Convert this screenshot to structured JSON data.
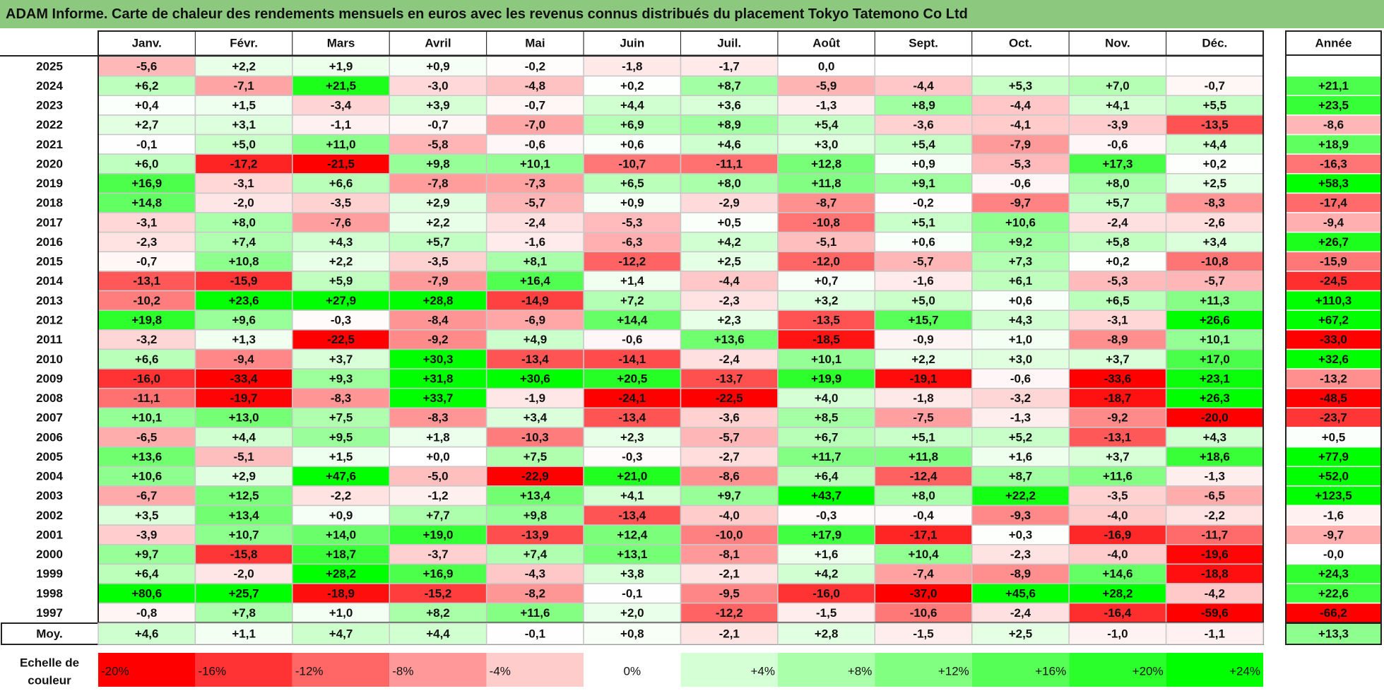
{
  "title": "ADAM Informe. Carte de chaleur des rendements mensuels en euros avec les revenus connus distribués du placement Tokyo Tatemono Co Ltd",
  "chart_data": {
    "type": "heatmap",
    "title": "ADAM Informe. Carte de chaleur des rendements mensuels en euros avec les revenus connus distribués du placement Tokyo Tatemono Co Ltd",
    "columns": [
      "Janv.",
      "Févr.",
      "Mars",
      "Avril",
      "Mai",
      "Juin",
      "Juil.",
      "Août",
      "Sept.",
      "Oct.",
      "Nov.",
      "Déc."
    ],
    "year_column_label": "Année",
    "rows": [
      {
        "year": "2025",
        "values": [
          "-5,6",
          "+2,2",
          "+1,9",
          "+0,9",
          "-0,2",
          "-1,8",
          "-1,7",
          "0,0",
          "",
          "",
          "",
          ""
        ],
        "annual": ""
      },
      {
        "year": "2024",
        "values": [
          "+6,2",
          "-7,1",
          "+21,5",
          "-3,0",
          "-4,8",
          "+0,2",
          "+8,7",
          "-5,9",
          "-4,4",
          "+5,3",
          "+7,0",
          "-0,7"
        ],
        "annual": "+21,1"
      },
      {
        "year": "2023",
        "values": [
          "+0,4",
          "+1,5",
          "-3,4",
          "+3,9",
          "-0,7",
          "+4,4",
          "+3,6",
          "-1,3",
          "+8,9",
          "-4,4",
          "+4,1",
          "+5,5"
        ],
        "annual": "+23,5"
      },
      {
        "year": "2022",
        "values": [
          "+2,7",
          "+3,1",
          "-1,1",
          "-0,7",
          "-7,0",
          "+6,9",
          "+8,9",
          "+5,4",
          "-3,6",
          "-4,1",
          "-3,9",
          "-13,5"
        ],
        "annual": "-8,6"
      },
      {
        "year": "2021",
        "values": [
          "-0,1",
          "+5,0",
          "+11,0",
          "-5,8",
          "-0,6",
          "+0,6",
          "+4,6",
          "+3,0",
          "+5,4",
          "-7,9",
          "-0,6",
          "+4,4"
        ],
        "annual": "+18,9"
      },
      {
        "year": "2020",
        "values": [
          "+6,0",
          "-17,2",
          "-21,5",
          "+9,8",
          "+10,1",
          "-10,7",
          "-11,1",
          "+12,8",
          "+0,9",
          "-5,3",
          "+17,3",
          "+0,2"
        ],
        "annual": "-16,3"
      },
      {
        "year": "2019",
        "values": [
          "+16,9",
          "-3,1",
          "+6,6",
          "-7,8",
          "-7,3",
          "+6,5",
          "+8,0",
          "+11,8",
          "+9,1",
          "-0,6",
          "+8,0",
          "+2,5"
        ],
        "annual": "+58,3"
      },
      {
        "year": "2018",
        "values": [
          "+14,8",
          "-2,0",
          "-3,5",
          "+2,9",
          "-5,7",
          "+0,9",
          "-2,9",
          "-8,7",
          "-0,2",
          "-9,7",
          "+5,7",
          "-8,3"
        ],
        "annual": "-17,4"
      },
      {
        "year": "2017",
        "values": [
          "-3,1",
          "+8,0",
          "-7,6",
          "+2,2",
          "-2,4",
          "-5,3",
          "+0,5",
          "-10,8",
          "+5,1",
          "+10,6",
          "-2,4",
          "-2,6"
        ],
        "annual": "-9,4"
      },
      {
        "year": "2016",
        "values": [
          "-2,3",
          "+7,4",
          "+4,3",
          "+5,7",
          "-1,6",
          "-6,3",
          "+4,2",
          "-5,1",
          "+0,6",
          "+9,2",
          "+5,8",
          "+3,4"
        ],
        "annual": "+26,7"
      },
      {
        "year": "2015",
        "values": [
          "-0,7",
          "+10,8",
          "+2,2",
          "-3,5",
          "+8,1",
          "-12,2",
          "+2,5",
          "-12,0",
          "-5,7",
          "+7,3",
          "+0,2",
          "-10,8"
        ],
        "annual": "-15,9"
      },
      {
        "year": "2014",
        "values": [
          "-13,1",
          "-15,9",
          "+5,9",
          "-7,9",
          "+16,4",
          "+1,4",
          "-4,4",
          "+0,7",
          "-1,6",
          "+6,1",
          "-5,3",
          "-5,7"
        ],
        "annual": "-24,5"
      },
      {
        "year": "2013",
        "values": [
          "-10,2",
          "+23,6",
          "+27,9",
          "+28,8",
          "-14,9",
          "+7,2",
          "-2,3",
          "+3,2",
          "+5,0",
          "+0,6",
          "+6,5",
          "+11,3"
        ],
        "annual": "+110,3"
      },
      {
        "year": "2012",
        "values": [
          "+19,8",
          "+9,6",
          "-0,3",
          "-8,4",
          "-6,9",
          "+14,4",
          "+2,3",
          "-13,5",
          "+15,7",
          "+4,3",
          "-3,1",
          "+26,6"
        ],
        "annual": "+67,2"
      },
      {
        "year": "2011",
        "values": [
          "-3,2",
          "+1,3",
          "-22,5",
          "-9,2",
          "+4,9",
          "-0,6",
          "+13,6",
          "-18,5",
          "-0,9",
          "+1,0",
          "-8,9",
          "+10,1"
        ],
        "annual": "-33,0"
      },
      {
        "year": "2010",
        "values": [
          "+6,6",
          "-9,4",
          "+3,7",
          "+30,3",
          "-13,4",
          "-14,1",
          "-2,4",
          "+10,1",
          "+2,2",
          "+3,0",
          "+3,7",
          "+17,0"
        ],
        "annual": "+32,6"
      },
      {
        "year": "2009",
        "values": [
          "-16,0",
          "-33,4",
          "+9,3",
          "+31,8",
          "+30,6",
          "+20,5",
          "-13,7",
          "+19,9",
          "-19,1",
          "-0,6",
          "-33,6",
          "+23,1"
        ],
        "annual": "-13,2"
      },
      {
        "year": "2008",
        "values": [
          "-11,1",
          "-19,7",
          "-8,3",
          "+33,7",
          "-1,9",
          "-24,1",
          "-22,5",
          "+4,0",
          "-1,8",
          "-3,2",
          "-18,7",
          "+26,3"
        ],
        "annual": "-48,5"
      },
      {
        "year": "2007",
        "values": [
          "+10,1",
          "+13,0",
          "+7,5",
          "-8,3",
          "+3,4",
          "-13,4",
          "-3,6",
          "+8,5",
          "-7,5",
          "-1,3",
          "-9,2",
          "-20,0"
        ],
        "annual": "-23,7"
      },
      {
        "year": "2006",
        "values": [
          "-6,5",
          "+4,4",
          "+9,5",
          "+1,8",
          "-10,3",
          "+2,3",
          "-5,7",
          "+6,7",
          "+5,1",
          "+5,2",
          "-13,1",
          "+4,3"
        ],
        "annual": "+0,5"
      },
      {
        "year": "2005",
        "values": [
          "+13,6",
          "-5,1",
          "+1,5",
          "+0,0",
          "+7,5",
          "-0,3",
          "-2,7",
          "+11,7",
          "+11,8",
          "+1,6",
          "+3,7",
          "+18,6"
        ],
        "annual": "+77,9"
      },
      {
        "year": "2004",
        "values": [
          "+10,6",
          "+2,9",
          "+47,6",
          "-5,0",
          "-22,9",
          "+21,0",
          "-8,6",
          "+6,4",
          "-12,4",
          "+8,7",
          "+11,6",
          "-1,3"
        ],
        "annual": "+52,0"
      },
      {
        "year": "2003",
        "values": [
          "-6,7",
          "+12,5",
          "-2,2",
          "-1,2",
          "+13,4",
          "+4,1",
          "+9,7",
          "+43,7",
          "+8,0",
          "+22,2",
          "-3,5",
          "-6,5"
        ],
        "annual": "+123,5"
      },
      {
        "year": "2002",
        "values": [
          "+3,5",
          "+13,4",
          "+0,9",
          "+7,7",
          "+9,8",
          "-13,4",
          "-4,0",
          "-0,3",
          "-0,4",
          "-9,3",
          "-4,0",
          "-2,2"
        ],
        "annual": "-1,6"
      },
      {
        "year": "2001",
        "values": [
          "-3,9",
          "+10,7",
          "+14,0",
          "+19,0",
          "-13,9",
          "+12,4",
          "-10,0",
          "+17,9",
          "-17,1",
          "+0,3",
          "-16,9",
          "-11,7"
        ],
        "annual": "-9,7"
      },
      {
        "year": "2000",
        "values": [
          "+9,7",
          "-15,8",
          "+18,7",
          "-3,7",
          "+7,4",
          "+13,1",
          "-8,1",
          "+1,6",
          "+10,4",
          "-2,3",
          "-4,0",
          "-19,6"
        ],
        "annual": "-0,0"
      },
      {
        "year": "1999",
        "values": [
          "+6,4",
          "-2,0",
          "+28,2",
          "+16,9",
          "-4,3",
          "+3,8",
          "-2,1",
          "+4,2",
          "-7,4",
          "-8,9",
          "+14,6",
          "-18,8"
        ],
        "annual": "+24,3"
      },
      {
        "year": "1998",
        "values": [
          "+80,6",
          "+25,7",
          "-18,9",
          "-15,2",
          "-8,2",
          "-0,1",
          "-9,5",
          "-16,0",
          "-37,0",
          "+45,6",
          "+28,2",
          "-4,2"
        ],
        "annual": "+22,6"
      },
      {
        "year": "1997",
        "values": [
          "-0,8",
          "+7,8",
          "+1,0",
          "+8,2",
          "+11,6",
          "+2,0",
          "-12,2",
          "-1,5",
          "-10,6",
          "-2,4",
          "-16,4",
          "-59,6"
        ],
        "annual": "-66,2"
      }
    ],
    "average": {
      "label": "Moy.",
      "values": [
        "+4,6",
        "+1,1",
        "+4,7",
        "+4,4",
        "-0,1",
        "+0,8",
        "-2,1",
        "+2,8",
        "-1,5",
        "+2,5",
        "-1,0",
        "-1,1"
      ],
      "annual": "+13,3"
    },
    "color_scale": {
      "label_line1": "Echelle de",
      "label_line2": "couleur",
      "steps": [
        {
          "label": "-20%",
          "value": -20
        },
        {
          "label": "-16%",
          "value": -16
        },
        {
          "label": "-12%",
          "value": -12
        },
        {
          "label": "-8%",
          "value": -8
        },
        {
          "label": "-4%",
          "value": -4
        },
        {
          "label": "0%",
          "value": 0
        },
        {
          "label": "+4%",
          "value": 4
        },
        {
          "label": "+8%",
          "value": 8
        },
        {
          "label": "+12%",
          "value": 12
        },
        {
          "label": "+16%",
          "value": 16
        },
        {
          "label": "+20%",
          "value": 20
        },
        {
          "label": "+24%",
          "value": 24
        }
      ],
      "negative_color": "#ff0000",
      "neutral_color": "#ffffff",
      "positive_color": "#00ff00"
    }
  }
}
